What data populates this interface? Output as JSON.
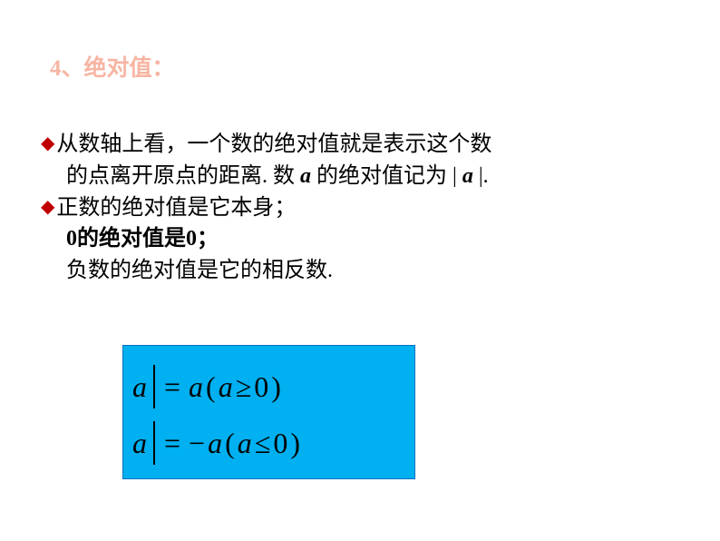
{
  "heading": {
    "number": "4、",
    "title": "绝对值：",
    "number_color": "#f7b5a3",
    "title_color": "#f7b5a3",
    "fontsize": 25
  },
  "bullets": {
    "diamond_color": "#c00000",
    "text_color": "#000000",
    "fontsize": 24,
    "b1": {
      "line1": "从数轴上看，一个数的绝对值就是表示这个数",
      "line2_pre": "的点离开原点的距离. 数 ",
      "var_a1": "a",
      "line2_mid": " 的绝对值记为 | ",
      "var_a2": "a",
      "line2_post": " |."
    },
    "b2": {
      "line1": "正数的绝对值是它本身；",
      "line2": "0的绝对值是0；",
      "line3": "负数的绝对值是它的相反数."
    }
  },
  "formula": {
    "background_color": "#00b0f0",
    "border_color": "#0070c0",
    "text_color": "#000000",
    "fontsize": 32,
    "row1": {
      "var": "a",
      "eq": "=",
      "rhs_var": "a",
      "open": "(",
      "cond_var": "a",
      "op": "≥",
      "zero": "0",
      "close": ")"
    },
    "row2": {
      "var": "a",
      "eq": "=",
      "neg": "−",
      "rhs_var": "a",
      "open": "(",
      "cond_var": "a",
      "op": "≤",
      "zero": "0",
      "close": ")"
    }
  }
}
